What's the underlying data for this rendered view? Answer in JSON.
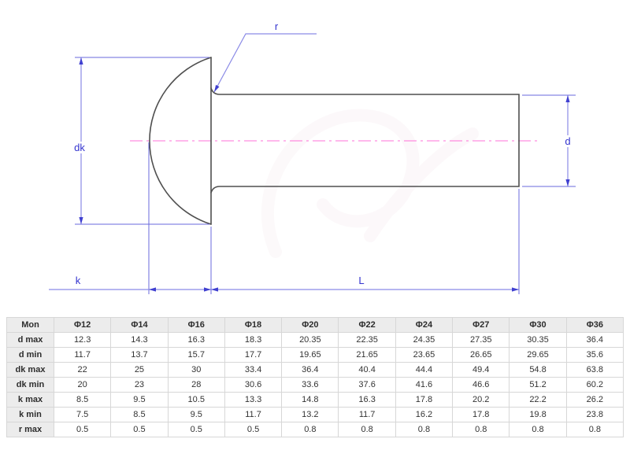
{
  "diagram": {
    "labels": {
      "dk": "dk",
      "k": "k",
      "L": "L",
      "d": "d",
      "r": "r"
    },
    "colors": {
      "dimension_line": "#6a6ade",
      "dimension_text": "#3434cf",
      "part_outline": "#4f4f4f",
      "centerline": "#ff70d8"
    }
  },
  "table": {
    "header": [
      "Mon",
      "Φ12",
      "Φ14",
      "Φ16",
      "Φ18",
      "Φ20",
      "Φ22",
      "Φ24",
      "Φ27",
      "Φ30",
      "Φ36"
    ],
    "rows": [
      {
        "label": "d max",
        "values": [
          "12.3",
          "14.3",
          "16.3",
          "18.3",
          "20.35",
          "22.35",
          "24.35",
          "27.35",
          "30.35",
          "36.4"
        ]
      },
      {
        "label": "d min",
        "values": [
          "11.7",
          "13.7",
          "15.7",
          "17.7",
          "19.65",
          "21.65",
          "23.65",
          "26.65",
          "29.65",
          "35.6"
        ]
      },
      {
        "label": "dk max",
        "values": [
          "22",
          "25",
          "30",
          "33.4",
          "36.4",
          "40.4",
          "44.4",
          "49.4",
          "54.8",
          "63.8"
        ]
      },
      {
        "label": "dk min",
        "values": [
          "20",
          "23",
          "28",
          "30.6",
          "33.6",
          "37.6",
          "41.6",
          "46.6",
          "51.2",
          "60.2"
        ]
      },
      {
        "label": "k max",
        "values": [
          "8.5",
          "9.5",
          "10.5",
          "13.3",
          "14.8",
          "16.3",
          "17.8",
          "20.2",
          "22.2",
          "26.2"
        ]
      },
      {
        "label": "k min",
        "values": [
          "7.5",
          "8.5",
          "9.5",
          "11.7",
          "13.2",
          "11.7",
          "16.2",
          "17.8",
          "19.8",
          "23.8"
        ]
      },
      {
        "label": "r max",
        "values": [
          "0.5",
          "0.5",
          "0.5",
          "0.5",
          "0.8",
          "0.8",
          "0.8",
          "0.8",
          "0.8",
          "0.8"
        ]
      }
    ]
  }
}
